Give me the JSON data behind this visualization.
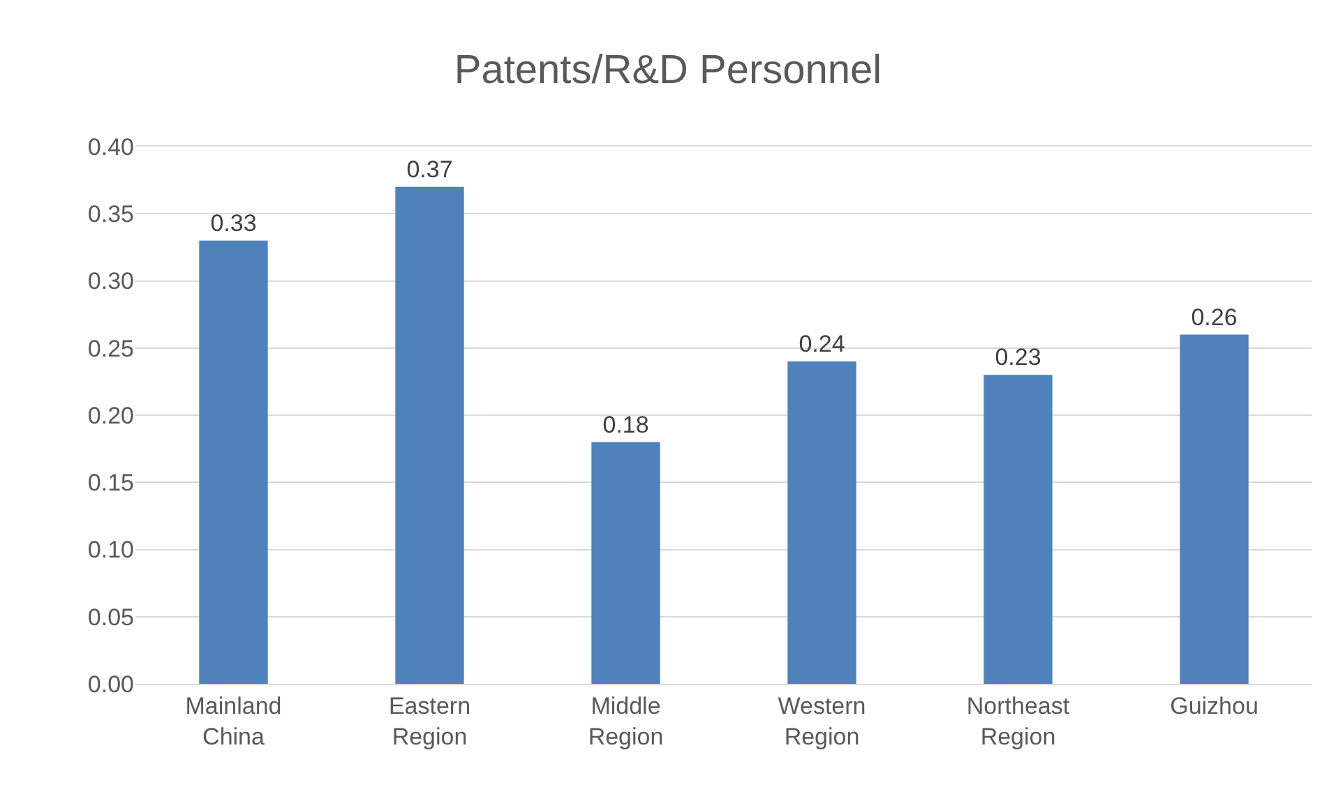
{
  "chart_data": {
    "type": "bar",
    "title": "Patents/R&D Personnel",
    "categories": [
      "Mainland China",
      "Eastern Region",
      "Middle Region",
      "Western Region",
      "Northeast Region",
      "Guizhou"
    ],
    "values": [
      0.33,
      0.37,
      0.18,
      0.24,
      0.23,
      0.26
    ],
    "color": "#4f81bd",
    "ylim": [
      0,
      0.4
    ],
    "yticks": [
      {
        "value": 0,
        "label": "0.00"
      },
      {
        "value": 0.05,
        "label": "0.05"
      },
      {
        "value": 0.1,
        "label": "0.10"
      },
      {
        "value": 0.15,
        "label": "0.15"
      },
      {
        "value": 0.2,
        "label": "0.20"
      },
      {
        "value": 0.25,
        "label": "0.25"
      },
      {
        "value": 0.3,
        "label": "0.30"
      },
      {
        "value": 0.35,
        "label": "0.35"
      },
      {
        "value": 0.4,
        "label": "0.40"
      }
    ],
    "grid": "y",
    "data_labels": true
  }
}
